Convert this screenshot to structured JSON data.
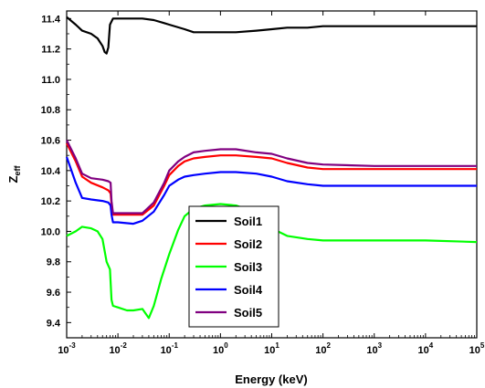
{
  "chart_data": {
    "type": "line",
    "xscale": "log",
    "xlim": [
      0.001,
      100000
    ],
    "ylim": [
      9.3,
      11.45
    ],
    "xlabel": "Energy (keV)",
    "ylabel": {
      "base": "Z",
      "sub": "eff"
    },
    "x_ticks": [
      {
        "base": "10",
        "exp": "-3"
      },
      {
        "base": "10",
        "exp": "-2"
      },
      {
        "base": "10",
        "exp": "-1"
      },
      {
        "base": "10",
        "exp": "0"
      },
      {
        "base": "10",
        "exp": "1"
      },
      {
        "base": "10",
        "exp": "2"
      },
      {
        "base": "10",
        "exp": "3"
      },
      {
        "base": "10",
        "exp": "4"
      },
      {
        "base": "10",
        "exp": "5"
      }
    ],
    "y_ticks": [
      "9.4",
      "9.6",
      "9.8",
      "10.0",
      "10.2",
      "10.4",
      "10.6",
      "10.8",
      "11.0",
      "11.2",
      "11.4"
    ],
    "legend": {
      "placement": "center"
    },
    "series": [
      {
        "name": "Soil1",
        "color": "#000000",
        "x": [
          0.001,
          0.0015,
          0.002,
          0.003,
          0.004,
          0.005,
          0.0055,
          0.006,
          0.0065,
          0.007,
          0.008,
          0.01,
          0.02,
          0.03,
          0.05,
          0.08,
          0.1,
          0.2,
          0.3,
          0.5,
          1,
          2,
          5,
          10,
          20,
          50,
          100,
          1000,
          10000,
          100000
        ],
        "y": [
          11.41,
          11.36,
          11.32,
          11.3,
          11.27,
          11.22,
          11.18,
          11.17,
          11.21,
          11.36,
          11.4,
          11.4,
          11.4,
          11.4,
          11.39,
          11.37,
          11.36,
          11.33,
          11.31,
          11.31,
          11.31,
          11.31,
          11.32,
          11.33,
          11.34,
          11.34,
          11.35,
          11.35,
          11.35,
          11.35
        ]
      },
      {
        "name": "Soil2",
        "color": "#ff0000",
        "x": [
          0.001,
          0.0015,
          0.002,
          0.003,
          0.005,
          0.0065,
          0.0072,
          0.0075,
          0.008,
          0.01,
          0.02,
          0.03,
          0.05,
          0.08,
          0.1,
          0.15,
          0.2,
          0.3,
          0.5,
          1,
          2,
          5,
          10,
          20,
          50,
          100,
          1000,
          10000,
          100000
        ],
        "y": [
          10.58,
          10.46,
          10.36,
          10.32,
          10.29,
          10.27,
          10.25,
          10.18,
          10.11,
          10.11,
          10.11,
          10.11,
          10.17,
          10.3,
          10.37,
          10.43,
          10.46,
          10.48,
          10.49,
          10.5,
          10.5,
          10.49,
          10.48,
          10.45,
          10.42,
          10.41,
          10.41,
          10.41,
          10.41
        ]
      },
      {
        "name": "Soil3",
        "color": "#00ff00",
        "x": [
          0.001,
          0.0015,
          0.002,
          0.003,
          0.004,
          0.005,
          0.006,
          0.007,
          0.0075,
          0.008,
          0.01,
          0.015,
          0.02,
          0.03,
          0.04,
          0.05,
          0.07,
          0.1,
          0.15,
          0.2,
          0.3,
          0.5,
          1,
          2,
          3,
          5,
          10,
          20,
          50,
          100,
          1000,
          10000,
          100000
        ],
        "y": [
          9.97,
          10.0,
          10.03,
          10.02,
          10.0,
          9.95,
          9.8,
          9.75,
          9.55,
          9.51,
          9.5,
          9.48,
          9.48,
          9.49,
          9.43,
          9.51,
          9.69,
          9.85,
          10.01,
          10.1,
          10.15,
          10.17,
          10.18,
          10.17,
          10.15,
          10.1,
          10.02,
          9.97,
          9.95,
          9.94,
          9.94,
          9.94,
          9.93
        ]
      },
      {
        "name": "Soil4",
        "color": "#0000ff",
        "x": [
          0.001,
          0.0015,
          0.002,
          0.003,
          0.005,
          0.0065,
          0.0072,
          0.0075,
          0.008,
          0.01,
          0.02,
          0.03,
          0.05,
          0.08,
          0.1,
          0.15,
          0.2,
          0.3,
          0.5,
          1,
          2,
          5,
          10,
          20,
          50,
          100,
          1000,
          10000,
          100000
        ],
        "y": [
          10.49,
          10.32,
          10.22,
          10.21,
          10.2,
          10.19,
          10.17,
          10.11,
          10.06,
          10.06,
          10.05,
          10.07,
          10.13,
          10.24,
          10.3,
          10.34,
          10.36,
          10.37,
          10.38,
          10.39,
          10.39,
          10.38,
          10.36,
          10.33,
          10.31,
          10.3,
          10.3,
          10.3,
          10.3
        ]
      },
      {
        "name": "Soil5",
        "color": "#800080",
        "x": [
          0.001,
          0.0015,
          0.002,
          0.003,
          0.005,
          0.0065,
          0.0072,
          0.0075,
          0.008,
          0.01,
          0.02,
          0.03,
          0.05,
          0.08,
          0.1,
          0.15,
          0.2,
          0.3,
          0.5,
          1,
          2,
          5,
          10,
          20,
          50,
          100,
          1000,
          10000,
          100000
        ],
        "y": [
          10.6,
          10.48,
          10.38,
          10.35,
          10.34,
          10.33,
          10.32,
          10.2,
          10.12,
          10.12,
          10.12,
          10.12,
          10.19,
          10.32,
          10.4,
          10.46,
          10.49,
          10.52,
          10.53,
          10.54,
          10.54,
          10.52,
          10.51,
          10.48,
          10.45,
          10.44,
          10.43,
          10.43,
          10.43
        ]
      }
    ]
  }
}
